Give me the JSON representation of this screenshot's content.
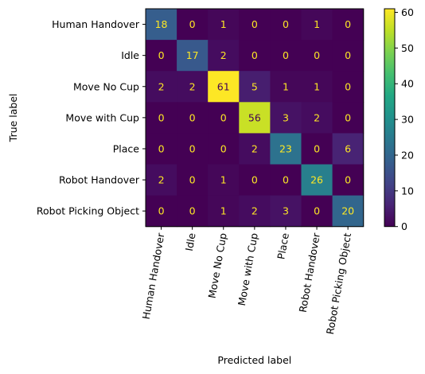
{
  "chart_data": {
    "type": "heatmap",
    "xlabel": "Predicted label",
    "ylabel": "True label",
    "labels": [
      "Human Handover",
      "Idle",
      "Move No Cup",
      "Move with Cup",
      "Place",
      "Robot Handover",
      "Robot Picking Object"
    ],
    "matrix": [
      [
        18,
        0,
        1,
        0,
        0,
        1,
        0
      ],
      [
        0,
        17,
        2,
        0,
        0,
        0,
        0
      ],
      [
        2,
        2,
        61,
        5,
        1,
        1,
        0
      ],
      [
        0,
        0,
        0,
        56,
        3,
        2,
        0
      ],
      [
        0,
        0,
        0,
        2,
        23,
        0,
        6
      ],
      [
        2,
        0,
        1,
        0,
        0,
        26,
        0
      ],
      [
        0,
        0,
        1,
        2,
        3,
        0,
        20
      ]
    ],
    "colorbar": {
      "min": 0,
      "max": 61,
      "ticks": [
        0,
        10,
        20,
        30,
        40,
        50,
        60
      ],
      "colormap": "viridis"
    },
    "x_tick_rotation_deg": 80,
    "text_colors": {
      "on_dark": "#fde725",
      "on_light": "#440154"
    },
    "grid": false,
    "legend": "colorbar-right"
  }
}
